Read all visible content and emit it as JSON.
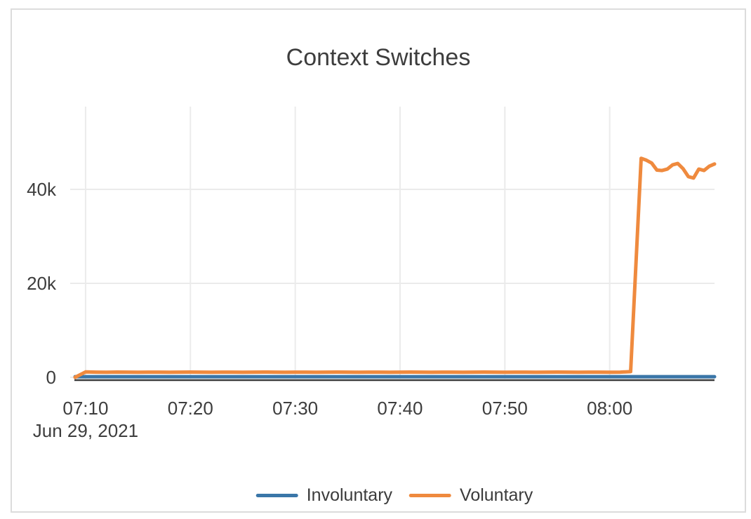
{
  "window": {
    "background_color": "#ffffff",
    "card_border_color": "#dcdcdc",
    "text_color": "#3d3d3d",
    "gridline_color": "#ebebeb",
    "axis_line_color": "#3b3b3b"
  },
  "chart_data": {
    "type": "line",
    "title": "Context Switches",
    "grid": true,
    "legend_position": "bottom-center",
    "x_axis": {
      "tick_labels": [
        "07:10",
        "07:20",
        "07:30",
        "07:40",
        "07:50",
        "08:00"
      ],
      "date_label": "Jun 29, 2021"
    },
    "y_axis": {
      "ticks": [
        {
          "label": "0",
          "value": 0
        },
        {
          "label": "20k",
          "value": 20000
        },
        {
          "label": "40k",
          "value": 40000
        }
      ],
      "range": [
        -300,
        57600
      ]
    },
    "series": [
      {
        "name": "Involuntary",
        "color": "#3a76a8",
        "points": [
          [
            "07:09",
            130
          ],
          [
            "07:10",
            130
          ],
          [
            "07:11",
            130
          ],
          [
            "07:12",
            130
          ],
          [
            "07:13",
            130
          ],
          [
            "07:14",
            130
          ],
          [
            "07:15",
            130
          ],
          [
            "07:16",
            130
          ],
          [
            "07:17",
            130
          ],
          [
            "07:18",
            130
          ],
          [
            "07:19",
            130
          ],
          [
            "07:20",
            130
          ],
          [
            "07:21",
            130
          ],
          [
            "07:22",
            130
          ],
          [
            "07:23",
            130
          ],
          [
            "07:24",
            130
          ],
          [
            "07:25",
            130
          ],
          [
            "07:26",
            130
          ],
          [
            "07:27",
            130
          ],
          [
            "07:28",
            130
          ],
          [
            "07:29",
            130
          ],
          [
            "07:30",
            130
          ],
          [
            "07:31",
            130
          ],
          [
            "07:32",
            130
          ],
          [
            "07:33",
            130
          ],
          [
            "07:34",
            130
          ],
          [
            "07:35",
            130
          ],
          [
            "07:36",
            130
          ],
          [
            "07:37",
            130
          ],
          [
            "07:38",
            130
          ],
          [
            "07:39",
            130
          ],
          [
            "07:40",
            130
          ],
          [
            "07:41",
            130
          ],
          [
            "07:42",
            130
          ],
          [
            "07:43",
            130
          ],
          [
            "07:44",
            130
          ],
          [
            "07:45",
            130
          ],
          [
            "07:46",
            130
          ],
          [
            "07:47",
            130
          ],
          [
            "07:48",
            130
          ],
          [
            "07:49",
            130
          ],
          [
            "07:50",
            130
          ],
          [
            "07:51",
            130
          ],
          [
            "07:52",
            130
          ],
          [
            "07:53",
            130
          ],
          [
            "07:54",
            130
          ],
          [
            "07:55",
            130
          ],
          [
            "07:56",
            130
          ],
          [
            "07:57",
            130
          ],
          [
            "07:58",
            130
          ],
          [
            "07:59",
            130
          ],
          [
            "08:00",
            130
          ],
          [
            "08:01",
            130
          ],
          [
            "08:02",
            130
          ],
          [
            "08:03",
            130
          ],
          [
            "08:04",
            130
          ],
          [
            "08:05",
            130
          ],
          [
            "08:06",
            130
          ],
          [
            "08:07",
            130
          ],
          [
            "08:08",
            130
          ],
          [
            "08:09",
            130
          ],
          [
            "08:10",
            130
          ]
        ]
      },
      {
        "name": "Voluntary",
        "color": "#ef8a3e",
        "points": [
          [
            "07:09",
            0
          ],
          [
            "07:10",
            1150
          ],
          [
            "07:11",
            1100
          ],
          [
            "07:12",
            1080
          ],
          [
            "07:13",
            1120
          ],
          [
            "07:14",
            1100
          ],
          [
            "07:15",
            1090
          ],
          [
            "07:16",
            1110
          ],
          [
            "07:17",
            1100
          ],
          [
            "07:18",
            1080
          ],
          [
            "07:19",
            1100
          ],
          [
            "07:20",
            1120
          ],
          [
            "07:21",
            1100
          ],
          [
            "07:22",
            1090
          ],
          [
            "07:23",
            1110
          ],
          [
            "07:24",
            1100
          ],
          [
            "07:25",
            1080
          ],
          [
            "07:26",
            1100
          ],
          [
            "07:27",
            1120
          ],
          [
            "07:28",
            1100
          ],
          [
            "07:29",
            1090
          ],
          [
            "07:30",
            1110
          ],
          [
            "07:31",
            1100
          ],
          [
            "07:32",
            1080
          ],
          [
            "07:33",
            1100
          ],
          [
            "07:34",
            1120
          ],
          [
            "07:35",
            1100
          ],
          [
            "07:36",
            1090
          ],
          [
            "07:37",
            1110
          ],
          [
            "07:38",
            1100
          ],
          [
            "07:39",
            1080
          ],
          [
            "07:40",
            1100
          ],
          [
            "07:41",
            1120
          ],
          [
            "07:42",
            1100
          ],
          [
            "07:43",
            1090
          ],
          [
            "07:44",
            1110
          ],
          [
            "07:45",
            1100
          ],
          [
            "07:46",
            1080
          ],
          [
            "07:47",
            1100
          ],
          [
            "07:48",
            1120
          ],
          [
            "07:49",
            1100
          ],
          [
            "07:50",
            1090
          ],
          [
            "07:51",
            1110
          ],
          [
            "07:52",
            1100
          ],
          [
            "07:53",
            1080
          ],
          [
            "07:54",
            1100
          ],
          [
            "07:55",
            1120
          ],
          [
            "07:56",
            1100
          ],
          [
            "07:57",
            1090
          ],
          [
            "07:58",
            1110
          ],
          [
            "07:59",
            1100
          ],
          [
            "08:00",
            1080
          ],
          [
            "08:01",
            1100
          ],
          [
            "08:02",
            1200
          ],
          [
            "08:03:00",
            46600
          ],
          [
            "08:03:30",
            46200
          ],
          [
            "08:04:00",
            45600
          ],
          [
            "08:04:30",
            44100
          ],
          [
            "08:05:00",
            44000
          ],
          [
            "08:05:30",
            44300
          ],
          [
            "08:06:00",
            45200
          ],
          [
            "08:06:30",
            45500
          ],
          [
            "08:07:00",
            44400
          ],
          [
            "08:07:30",
            42700
          ],
          [
            "08:08:00",
            42400
          ],
          [
            "08:08:30",
            44300
          ],
          [
            "08:09:00",
            44000
          ],
          [
            "08:09:30",
            44900
          ],
          [
            "08:10:00",
            45400
          ]
        ]
      }
    ]
  }
}
